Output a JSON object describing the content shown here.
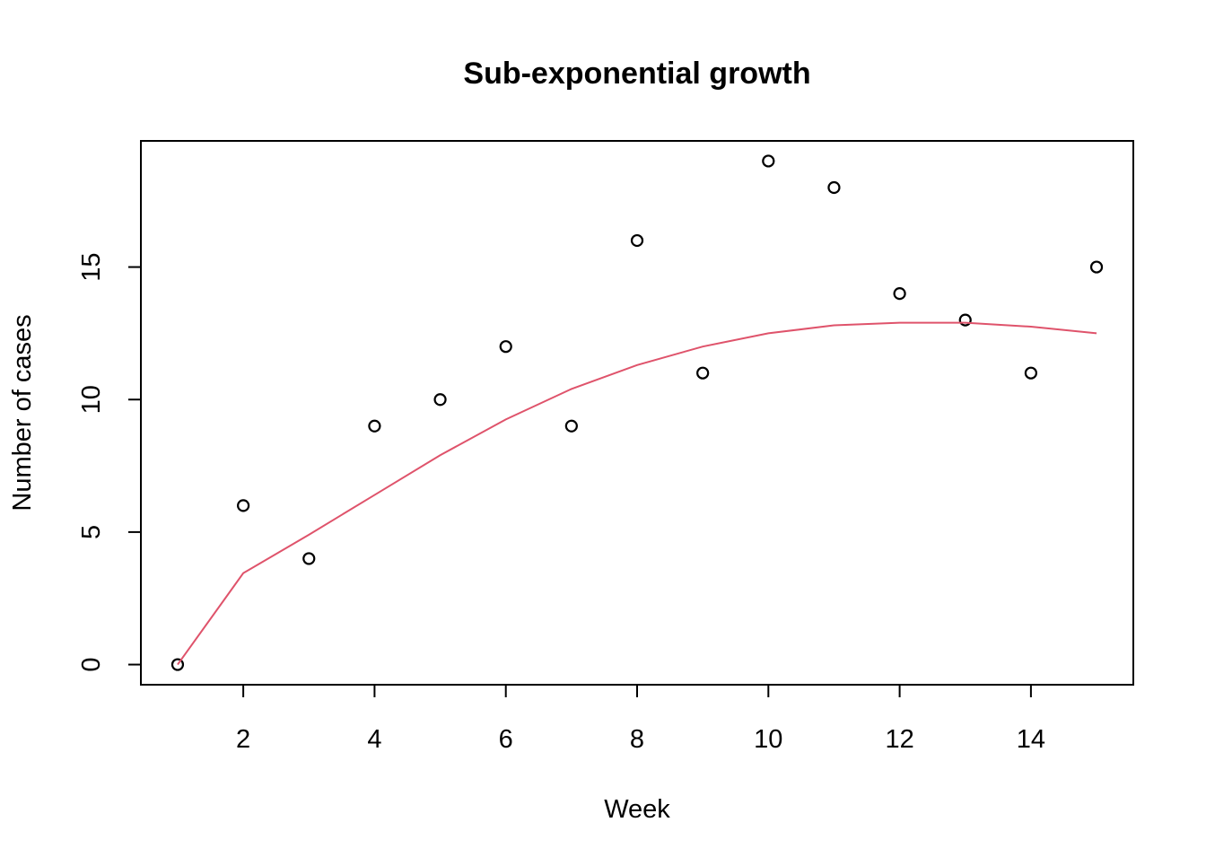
{
  "chart_data": {
    "type": "scatter",
    "title": "Sub-exponential growth",
    "xlabel": "Week",
    "ylabel": "Number of cases",
    "xlim": [
      1,
      15
    ],
    "ylim": [
      0,
      19
    ],
    "x_ticks": [
      2,
      4,
      6,
      8,
      10,
      12,
      14
    ],
    "y_ticks": [
      0,
      5,
      10,
      15
    ],
    "x_tick_labels": [
      "2",
      "4",
      "6",
      "8",
      "10",
      "12",
      "14"
    ],
    "y_tick_labels": [
      "0",
      "5",
      "10",
      "15"
    ],
    "grid": false,
    "series": [
      {
        "kind": "points",
        "marker": "open-circle",
        "color": "#000000",
        "x": [
          1,
          2,
          3,
          4,
          5,
          6,
          7,
          8,
          9,
          10,
          11,
          12,
          13,
          14,
          15
        ],
        "y": [
          0,
          6,
          4,
          9,
          10,
          12,
          9,
          16,
          11,
          19,
          18,
          14,
          13,
          11,
          15
        ]
      },
      {
        "kind": "line",
        "color": "#DF536B",
        "x": [
          1,
          2,
          3,
          4,
          5,
          6,
          7,
          8,
          9,
          10,
          11,
          12,
          13,
          14,
          15
        ],
        "y": [
          0,
          3.45,
          4.9,
          6.4,
          7.9,
          9.25,
          10.4,
          11.3,
          12.0,
          12.5,
          12.8,
          12.9,
          12.9,
          12.75,
          12.5
        ]
      }
    ]
  }
}
